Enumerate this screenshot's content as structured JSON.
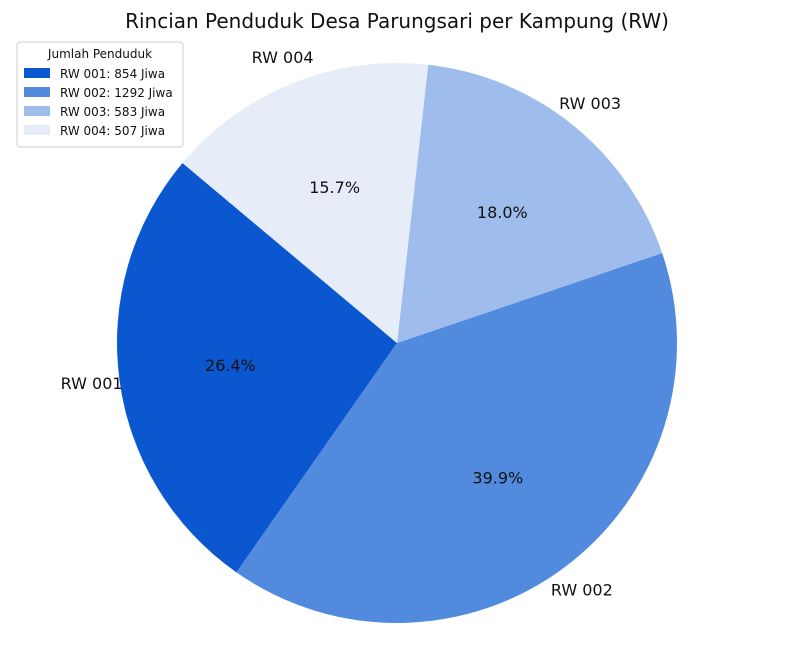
{
  "chart_data": {
    "type": "pie",
    "title": "Rincian Penduduk Desa Parungsari per Kampung (RW)",
    "categories": [
      "RW 001",
      "RW 002",
      "RW 003",
      "RW 004"
    ],
    "values": [
      854,
      1292,
      583,
      507
    ],
    "percent_labels": [
      "26.4%",
      "39.9%",
      "18.0%",
      "15.7%"
    ],
    "colors": [
      "#0b57d0",
      "#528ade",
      "#9ebcec",
      "#e6edf9"
    ],
    "legend": {
      "title": "Jumlah Penduduk",
      "placement": "top-left",
      "entries": [
        "RW 001: 854 Jiwa",
        "RW 002: 1292 Jiwa",
        "RW 003: 583 Jiwa",
        "RW 004: 507 Jiwa"
      ]
    }
  }
}
